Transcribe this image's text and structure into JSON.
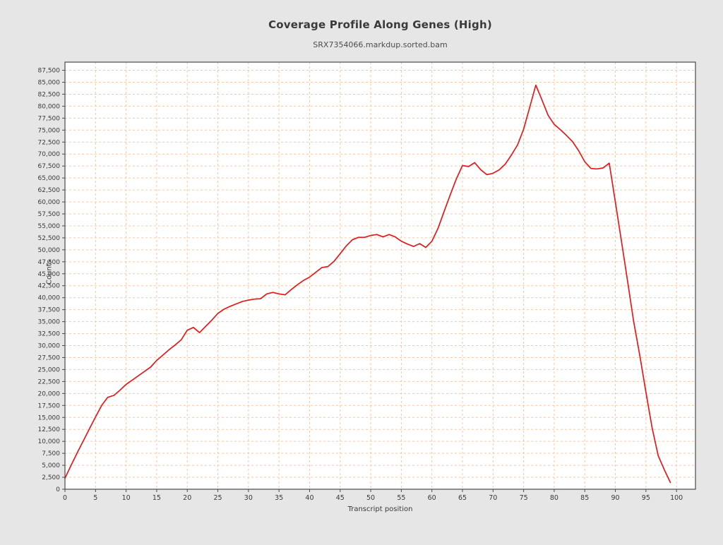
{
  "header": {
    "title": "Coverage Profile Along Genes (High)",
    "subtitle": "SRX7354066.markdup.sorted.bam"
  },
  "chart_data": {
    "type": "line",
    "title": "Coverage Profile Along Genes (High)",
    "subtitle": "SRX7354066.markdup.sorted.bam",
    "xlabel": "Transcript position",
    "ylabel": "Counts",
    "legend": "none",
    "grid": "on",
    "xlim": [
      0,
      103.1
    ],
    "ylim": [
      0,
      89200
    ],
    "x_ticks": [
      0,
      5,
      10,
      15,
      20,
      25,
      30,
      35,
      40,
      45,
      50,
      55,
      60,
      65,
      70,
      75,
      80,
      85,
      90,
      95,
      100
    ],
    "y_tick_step": 2500,
    "y_tick_max": 87500,
    "x": [
      0,
      1,
      2,
      3,
      4,
      5,
      6,
      7,
      8,
      9,
      10,
      11,
      12,
      13,
      14,
      15,
      16,
      17,
      18,
      19,
      20,
      21,
      22,
      23,
      24,
      25,
      26,
      27,
      28,
      29,
      30,
      31,
      32,
      33,
      34,
      35,
      36,
      37,
      38,
      39,
      40,
      41,
      42,
      43,
      44,
      45,
      46,
      47,
      48,
      49,
      50,
      51,
      52,
      53,
      54,
      55,
      56,
      57,
      58,
      59,
      60,
      61,
      62,
      63,
      64,
      65,
      66,
      67,
      68,
      69,
      70,
      71,
      72,
      73,
      74,
      75,
      76,
      77,
      78,
      79,
      80,
      81,
      82,
      83,
      84,
      85,
      86,
      87,
      88,
      89,
      90,
      91,
      92,
      93,
      94,
      95,
      96,
      97,
      98,
      99
    ],
    "series": [
      {
        "name": "coverage",
        "color": "#e31a1c",
        "values": [
          2300,
          5000,
          7600,
          10100,
          12600,
          15100,
          17500,
          19200,
          19600,
          20700,
          21900,
          22800,
          23700,
          24600,
          25500,
          26900,
          28000,
          29100,
          30100,
          31200,
          33200,
          33800,
          32700,
          34000,
          35300,
          36700,
          37600,
          38200,
          38700,
          39200,
          39500,
          39700,
          39800,
          40800,
          41100,
          40800,
          40600,
          41700,
          42700,
          43600,
          44300,
          45300,
          46300,
          46500,
          47600,
          49200,
          50800,
          52100,
          52600,
          52600,
          53000,
          53200,
          52700,
          53200,
          52700,
          51800,
          51200,
          50700,
          51300,
          50500,
          51800,
          54500,
          58000,
          61500,
          64800,
          67600,
          67400,
          68200,
          66700,
          65700,
          66000,
          66700,
          67900,
          69800,
          71900,
          75200,
          79800,
          84400,
          81300,
          78100,
          76200,
          75100,
          73900,
          72600,
          70700,
          68400,
          67000,
          66900,
          67100,
          68100,
          60000,
          51800,
          43400,
          35000,
          27900,
          20300,
          12900,
          7000,
          4100,
          1400
        ]
      }
    ],
    "colors": {
      "figure_background": "#e6e6e6",
      "plot_background": "#ffffff",
      "gridline": "#f6c9a5",
      "spine": "#4a4a4a",
      "tick": "#4a4a4a",
      "text": "#3a3a3a"
    }
  }
}
